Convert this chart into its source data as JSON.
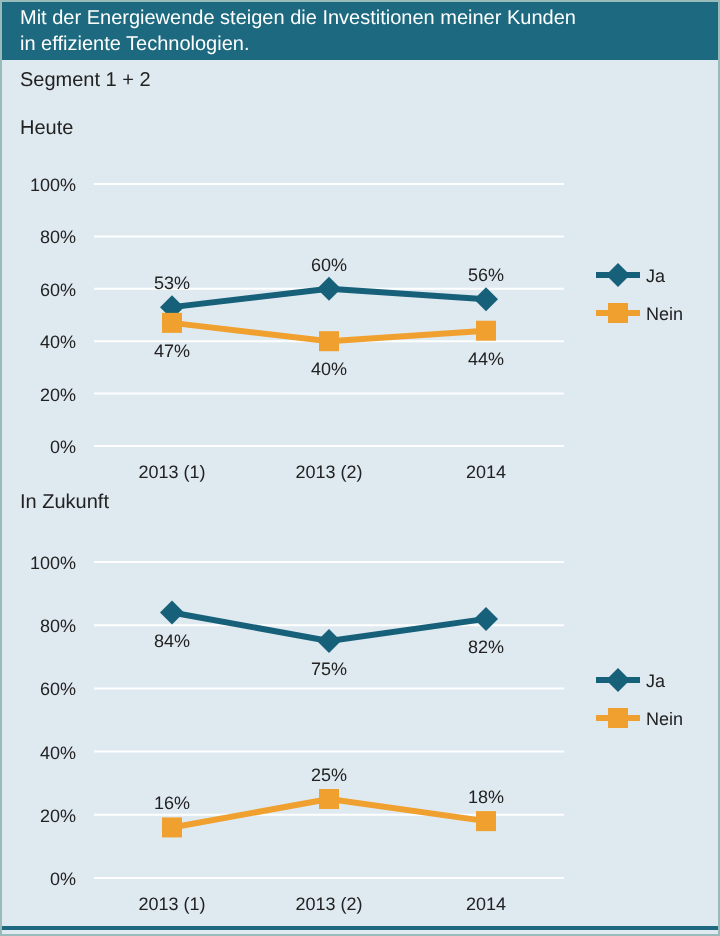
{
  "chart_data": [
    {
      "type": "line",
      "title": "Mit der Energiewende steigen die Investitionen meiner Kunden in effiziente Technologien.",
      "subtitle": "Segment 1 + 2",
      "ylabel": "Heute",
      "categories": [
        "2013 (1)",
        "2013 (2)",
        "2014"
      ],
      "series": [
        {
          "name": "Ja",
          "color": "#17607a",
          "marker": "diamond",
          "values": [
            53,
            60,
            56
          ],
          "value_labels": [
            "53%",
            "60%",
            "56%"
          ]
        },
        {
          "name": "Nein",
          "color": "#f0a02e",
          "marker": "square",
          "values": [
            47,
            40,
            44
          ],
          "value_labels": [
            "47%",
            "40%",
            "44%"
          ]
        }
      ],
      "ylim": [
        0,
        100
      ],
      "yticks": [
        {
          "value": 0,
          "label": "0%"
        },
        {
          "value": 20,
          "label": "20%"
        },
        {
          "value": 40,
          "label": "40%"
        },
        {
          "value": 60,
          "label": "60%"
        },
        {
          "value": 80,
          "label": "80%"
        },
        {
          "value": 100,
          "label": "100%"
        }
      ],
      "grid": "y",
      "legend": "right",
      "line_style": "solid"
    },
    {
      "type": "line",
      "ylabel": "In Zukunft",
      "categories": [
        "2013 (1)",
        "2013 (2)",
        "2014"
      ],
      "series": [
        {
          "name": "Ja",
          "color": "#17607a",
          "marker": "diamond",
          "values": [
            84,
            75,
            82
          ],
          "value_labels": [
            "84%",
            "75%",
            "82%"
          ]
        },
        {
          "name": "Nein",
          "color": "#f0a02e",
          "marker": "square",
          "values": [
            16,
            25,
            18
          ],
          "value_labels": [
            "16%",
            "25%",
            "18%"
          ]
        }
      ],
      "ylim": [
        0,
        100
      ],
      "yticks": [
        {
          "value": 0,
          "label": "0%"
        },
        {
          "value": 20,
          "label": "20%"
        },
        {
          "value": 40,
          "label": "40%"
        },
        {
          "value": 60,
          "label": "60%"
        },
        {
          "value": 80,
          "label": "80%"
        },
        {
          "value": 100,
          "label": "100%"
        }
      ],
      "grid": "y",
      "legend": "right",
      "line_style": "solid"
    }
  ]
}
